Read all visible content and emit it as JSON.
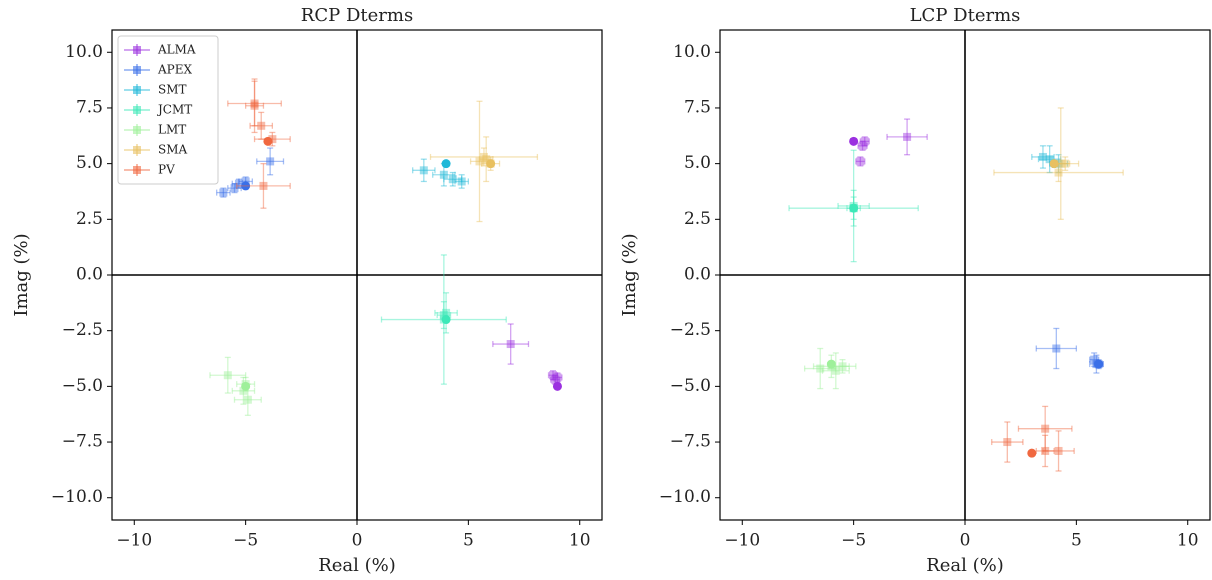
{
  "chart_data": [
    {
      "type": "scatter",
      "title": "RCP Dterms",
      "x_label": "Real (%)",
      "y_label": "Imag (%)",
      "xlim": [
        -11,
        11
      ],
      "ylim": [
        -11,
        11
      ],
      "xticks": [
        {
          "value": -10,
          "label": "−10"
        },
        {
          "value": -5,
          "label": "−5"
        },
        0,
        5,
        10
      ],
      "yticks": [
        {
          "value": -10,
          "label": "−10.0"
        },
        {
          "value": -7.5,
          "label": "−7.5"
        },
        {
          "value": -5,
          "label": "−5.0"
        },
        {
          "value": -2.5,
          "label": "−2.5"
        },
        {
          "value": 0,
          "label": "0.0"
        },
        2.5,
        {
          "value": 5,
          "label": "5.0"
        },
        7.5,
        {
          "value": 10,
          "label": "10.0"
        }
      ],
      "hlines": [
        0
      ],
      "vlines": [
        0
      ],
      "legend": "upper left",
      "series": [
        {
          "name": "ALMA",
          "color": "#9b30e0",
          "x": [
            6.9,
            8.8,
            8.9,
            9.0
          ],
          "y": [
            -3.1,
            -4.5,
            -4.7,
            -4.6
          ],
          "xerr": [
            0.8,
            0.2,
            0.2,
            0.2
          ],
          "yerr": [
            0.9,
            0.2,
            0.2,
            0.2
          ],
          "centroid": [
            9.0,
            -5.0
          ]
        },
        {
          "name": "APEX",
          "color": "#3a6fe8",
          "x": [
            -6.0,
            -5.5,
            -5.3,
            -5.0,
            -3.9
          ],
          "y": [
            3.7,
            3.9,
            4.1,
            4.2,
            5.1
          ],
          "xerr": [
            0.3,
            0.3,
            0.3,
            0.3,
            0.6
          ],
          "yerr": [
            0.2,
            0.2,
            0.2,
            0.2,
            0.6
          ],
          "centroid": [
            -5.0,
            4.0
          ]
        },
        {
          "name": "SMT",
          "color": "#1fb8d8",
          "x": [
            3.0,
            3.9,
            4.3,
            4.7
          ],
          "y": [
            4.7,
            4.5,
            4.3,
            4.2
          ],
          "xerr": [
            0.5,
            0.5,
            0.4,
            0.3
          ],
          "yerr": [
            0.5,
            0.5,
            0.3,
            0.3
          ],
          "centroid": [
            4.0,
            5.0
          ]
        },
        {
          "name": "JCMT",
          "color": "#3de8b8",
          "x": [
            3.9,
            3.9,
            4.0
          ],
          "y": [
            -2.0,
            -1.8,
            -1.7
          ],
          "xerr": [
            2.8,
            0.3,
            0.5
          ],
          "yerr": [
            2.9,
            0.6,
            0.9
          ],
          "centroid": [
            4.0,
            -2.0
          ]
        },
        {
          "name": "LMT",
          "color": "#9ef09a",
          "x": [
            -5.8,
            -5.0,
            -5.1,
            -4.9
          ],
          "y": [
            -4.5,
            -4.9,
            -5.2,
            -5.6
          ],
          "xerr": [
            0.8,
            0.4,
            0.5,
            0.6
          ],
          "yerr": [
            0.8,
            0.3,
            0.6,
            0.7
          ],
          "centroid": [
            -5.0,
            -5.0
          ]
        },
        {
          "name": "SMA",
          "color": "#e8c060",
          "x": [
            5.5,
            5.7,
            5.8,
            6.0
          ],
          "y": [
            5.1,
            5.3,
            5.2,
            5.0
          ],
          "xerr": [
            0.4,
            2.4,
            0.3,
            0.4
          ],
          "yerr": [
            2.7,
            0.4,
            1.0,
            0.3
          ],
          "centroid": [
            6.0,
            5.0
          ]
        },
        {
          "name": "PV",
          "color": "#f06840",
          "x": [
            -4.6,
            -4.6,
            -4.3,
            -3.8,
            -4.2
          ],
          "y": [
            7.7,
            7.6,
            6.7,
            6.1,
            4.0
          ],
          "xerr": [
            1.2,
            0.4,
            0.5,
            0.8,
            1.2
          ],
          "yerr": [
            1.0,
            1.2,
            0.6,
            0.3,
            1.0
          ],
          "centroid": [
            -4.0,
            6.0
          ]
        }
      ]
    },
    {
      "type": "scatter",
      "title": "LCP Dterms",
      "x_label": "Real (%)",
      "y_label": "Imag (%)",
      "xlim": [
        -11,
        11
      ],
      "ylim": [
        -11,
        11
      ],
      "xticks": [
        {
          "value": -10,
          "label": "−10"
        },
        {
          "value": -5,
          "label": "−5"
        },
        0,
        5,
        10
      ],
      "yticks": [
        {
          "value": -10,
          "label": "−10.0"
        },
        {
          "value": -7.5,
          "label": "−7.5"
        },
        {
          "value": -5,
          "label": "−5.0"
        },
        {
          "value": -2.5,
          "label": "−2.5"
        },
        {
          "value": 0,
          "label": "0.0"
        },
        2.5,
        {
          "value": 5,
          "label": "5.0"
        },
        7.5,
        {
          "value": 10,
          "label": "10.0"
        }
      ],
      "hlines": [
        0
      ],
      "vlines": [
        0
      ],
      "series": [
        {
          "color": "#9b30e0",
          "x": [
            -2.6,
            -4.5,
            -4.6,
            -4.7
          ],
          "y": [
            6.2,
            6.0,
            5.8,
            5.1
          ],
          "xerr": [
            0.9,
            0.2,
            0.2,
            0.2
          ],
          "yerr": [
            0.8,
            0.2,
            0.2,
            0.2
          ],
          "centroid": [
            -5.0,
            6.0
          ]
        },
        {
          "color": "#3a6fe8",
          "x": [
            4.1,
            5.8,
            5.9,
            6.0
          ],
          "y": [
            -3.3,
            -3.8,
            -4.0,
            -4.0
          ],
          "xerr": [
            0.9,
            0.2,
            0.3,
            0.2
          ],
          "yerr": [
            0.9,
            0.3,
            0.4,
            0.2
          ],
          "centroid": [
            6.0,
            -4.0
          ]
        },
        {
          "color": "#1fb8d8",
          "x": [
            3.5,
            3.8,
            4.2
          ],
          "y": [
            5.3,
            5.2,
            5.0
          ],
          "xerr": [
            0.5,
            0.5,
            0.4
          ],
          "yerr": [
            0.5,
            0.6,
            0.4
          ],
          "centroid": [
            4.0,
            5.0
          ]
        },
        {
          "color": "#3de8b8",
          "x": [
            -5.0,
            -5.0,
            -5.0
          ],
          "y": [
            3.0,
            3.1,
            3.0
          ],
          "xerr": [
            2.9,
            0.7,
            0.3
          ],
          "yerr": [
            0.5,
            2.5,
            0.8
          ],
          "centroid": [
            -5.0,
            3.0
          ]
        },
        {
          "color": "#9ef09a",
          "x": [
            -6.5,
            -6.0,
            -5.8,
            -5.5
          ],
          "y": [
            -4.2,
            -4.1,
            -4.3,
            -4.1
          ],
          "xerr": [
            0.7,
            0.8,
            0.6,
            0.6
          ],
          "yerr": [
            0.9,
            0.5,
            0.8,
            0.3
          ],
          "centroid": [
            -6.0,
            -4.0
          ]
        },
        {
          "color": "#e8c060",
          "x": [
            4.2,
            4.3,
            4.5
          ],
          "y": [
            4.6,
            5.0,
            5.0
          ],
          "xerr": [
            2.9,
            0.4,
            0.6
          ],
          "yerr": [
            0.4,
            2.5,
            0.3
          ],
          "centroid": [
            4.0,
            5.0
          ]
        },
        {
          "color": "#f06840",
          "x": [
            1.9,
            3.6,
            3.6,
            4.2
          ],
          "y": [
            -7.5,
            -6.9,
            -7.9,
            -7.9
          ],
          "xerr": [
            0.7,
            1.2,
            0.4,
            0.7
          ],
          "yerr": [
            0.9,
            1.0,
            0.7,
            0.9
          ],
          "centroid": [
            3.0,
            -8.0
          ]
        }
      ]
    }
  ]
}
